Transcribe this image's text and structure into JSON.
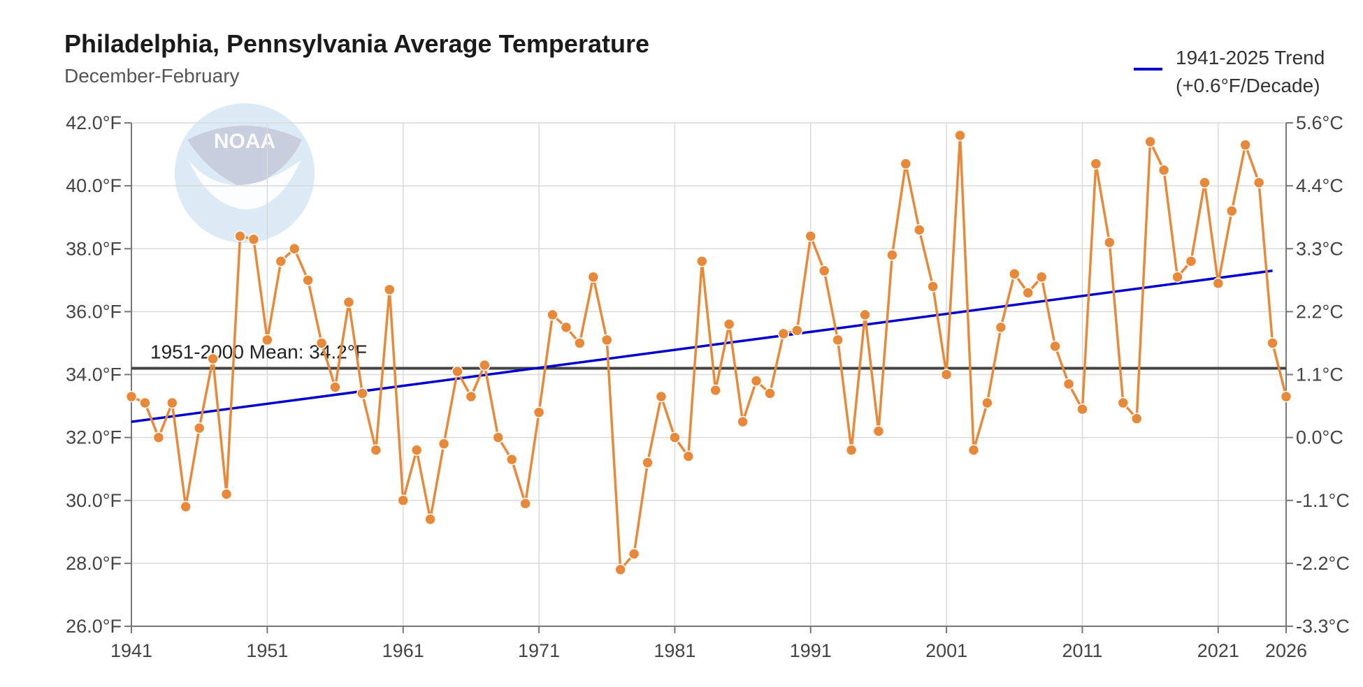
{
  "chart_data": {
    "type": "line",
    "title": "Philadelphia, Pennsylvania Average Temperature",
    "subtitle": "December-February",
    "xlim": [
      1941,
      2026
    ],
    "ylim": [
      26,
      42
    ],
    "x_ticks": [
      "1941",
      "1951",
      "1961",
      "1971",
      "1981",
      "1991",
      "2001",
      "2011",
      "2021",
      "2026"
    ],
    "y_ticks_left": [
      {
        "value": 26,
        "label": "26.0°F"
      },
      {
        "value": 28,
        "label": "28.0°F"
      },
      {
        "value": 30,
        "label": "30.0°F"
      },
      {
        "value": 32,
        "label": "32.0°F"
      },
      {
        "value": 34,
        "label": "34.0°F"
      },
      {
        "value": 36,
        "label": "36.0°F"
      },
      {
        "value": 38,
        "label": "38.0°F"
      },
      {
        "value": 40,
        "label": "40.0°F"
      },
      {
        "value": 42,
        "label": "42.0°F"
      }
    ],
    "y_ticks_right": [
      {
        "value": 26,
        "label": "-3.3°C"
      },
      {
        "value": 28,
        "label": "-2.2°C"
      },
      {
        "value": 30,
        "label": "-1.1°C"
      },
      {
        "value": 32,
        "label": "0.0°C"
      },
      {
        "value": 34,
        "label": "1.1°C"
      },
      {
        "value": 36,
        "label": "2.2°C"
      },
      {
        "value": 38,
        "label": "3.3°C"
      },
      {
        "value": 40,
        "label": "4.4°C"
      },
      {
        "value": 42,
        "label": "5.6°C"
      }
    ],
    "grid": true,
    "series": [
      {
        "color": "#e8893a",
        "x": [
          1941,
          1942,
          1943,
          1944,
          1945,
          1946,
          1947,
          1948,
          1949,
          1950,
          1951,
          1952,
          1953,
          1954,
          1955,
          1956,
          1957,
          1958,
          1959,
          1960,
          1961,
          1962,
          1963,
          1964,
          1965,
          1966,
          1967,
          1968,
          1969,
          1970,
          1971,
          1972,
          1973,
          1974,
          1975,
          1976,
          1977,
          1978,
          1979,
          1980,
          1981,
          1982,
          1983,
          1984,
          1985,
          1986,
          1987,
          1988,
          1989,
          1990,
          1991,
          1992,
          1993,
          1994,
          1995,
          1996,
          1997,
          1998,
          1999,
          2000,
          2001,
          2002,
          2003,
          2004,
          2005,
          2006,
          2007,
          2008,
          2009,
          2010,
          2011,
          2012,
          2013,
          2014,
          2015,
          2016,
          2017,
          2018,
          2019,
          2020,
          2021,
          2022,
          2023,
          2024,
          2025,
          2026
        ],
        "values": [
          33.3,
          33.1,
          32.0,
          33.1,
          29.8,
          32.3,
          34.5,
          30.2,
          38.4,
          38.3,
          35.1,
          37.6,
          38.0,
          37.0,
          35.0,
          33.6,
          36.3,
          33.4,
          31.6,
          36.7,
          30.0,
          31.6,
          29.4,
          31.8,
          34.1,
          33.3,
          34.3,
          32.0,
          31.3,
          29.9,
          32.8,
          35.9,
          35.5,
          35.0,
          37.1,
          35.1,
          27.8,
          28.3,
          31.2,
          33.3,
          32.0,
          31.4,
          37.6,
          33.5,
          35.6,
          32.5,
          33.8,
          33.4,
          35.3,
          35.4,
          38.4,
          37.3,
          35.1,
          31.6,
          35.9,
          32.2,
          37.8,
          40.7,
          38.6,
          36.8,
          34.0,
          41.6,
          31.6,
          33.1,
          35.5,
          37.2,
          36.6,
          37.1,
          34.9,
          33.7,
          32.9,
          40.7,
          38.2,
          33.1,
          32.6,
          41.4,
          40.5,
          37.1,
          37.6,
          40.1,
          36.9,
          39.2,
          41.3,
          40.1,
          35.0,
          33.3
        ]
      }
    ],
    "trend": {
      "label_line1": "1941-2025 Trend",
      "label_line2": "(+0.6°F/Decade)",
      "color": "#0000cc",
      "start": {
        "x": 1941,
        "y": 32.5
      },
      "end": {
        "x": 2025,
        "y": 37.3
      }
    },
    "mean": {
      "label": "1951-2000 Mean: 34.2°F",
      "value": 34.2,
      "color": "#444444"
    },
    "legend_position": "top-right"
  },
  "colors": {
    "series": "#e8893a",
    "trend": "#0000cc",
    "mean": "#444444",
    "grid": "#d9d9d9"
  },
  "logo": {
    "icon": "noaa-logo-icon",
    "text": "NOAA"
  }
}
